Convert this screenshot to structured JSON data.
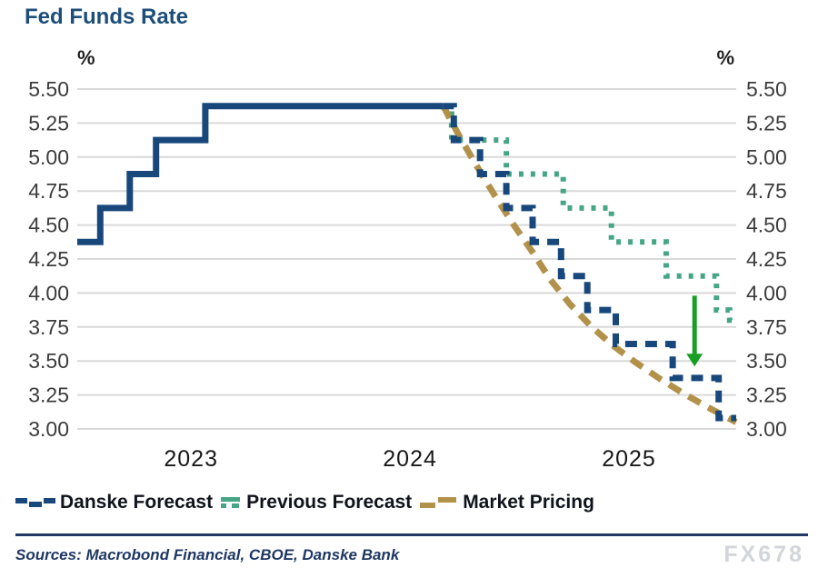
{
  "title": "Fed Funds Rate",
  "axis": {
    "unit_label": "%",
    "y_ticks": [
      {
        "label": "5.50",
        "value": 5.5
      },
      {
        "label": "5.25",
        "value": 5.25
      },
      {
        "label": "5.00",
        "value": 5.0
      },
      {
        "label": "4.75",
        "value": 4.75
      },
      {
        "label": "4.50",
        "value": 4.5
      },
      {
        "label": "4.25",
        "value": 4.25
      },
      {
        "label": "4.00",
        "value": 4.0
      },
      {
        "label": "3.75",
        "value": 3.75
      },
      {
        "label": "3.50",
        "value": 3.5
      },
      {
        "label": "3.25",
        "value": 3.25
      },
      {
        "label": "3.00",
        "value": 3.0
      }
    ],
    "x_ticks": [
      {
        "label": "2023",
        "t": 2023.5
      },
      {
        "label": "2024",
        "t": 2024.5
      },
      {
        "label": "2025",
        "t": 2025.5
      }
    ]
  },
  "chart_data": {
    "type": "line",
    "title": "Fed Funds Rate",
    "ylabel": "%",
    "ylim": [
      3.0,
      5.5
    ],
    "xlim": [
      2022.98,
      2025.99
    ],
    "y_tick_step": 0.25,
    "grid": true,
    "legend_position": "bottom",
    "series": [
      {
        "id": "history",
        "mode": "step",
        "style": "solid",
        "color": "#17477b",
        "width": 7,
        "points": [
          [
            2022.98,
            4.375
          ],
          [
            2023.085,
            4.625
          ],
          [
            2023.22,
            4.875
          ],
          [
            2023.34,
            5.125
          ],
          [
            2023.565,
            5.375
          ],
          [
            2024.652,
            5.375
          ]
        ]
      },
      {
        "id": "danske",
        "name": "Danske Forecast",
        "mode": "step",
        "style": "dashed",
        "dash": "13 9",
        "color": "#17477b",
        "width": 7,
        "points": [
          [
            2024.652,
            5.375
          ],
          [
            2024.7,
            5.125
          ],
          [
            2024.82,
            4.875
          ],
          [
            2024.94,
            4.625
          ],
          [
            2025.06,
            4.375
          ],
          [
            2025.19,
            4.125
          ],
          [
            2025.31,
            3.875
          ],
          [
            2025.44,
            3.625
          ],
          [
            2025.7,
            3.375
          ],
          [
            2025.91,
            3.08
          ],
          [
            2025.99,
            3.08
          ]
        ]
      },
      {
        "id": "previous",
        "name": "Previous Forecast",
        "mode": "step",
        "style": "dotted",
        "dash": "5 8",
        "color": "#45a585",
        "width": 6,
        "points": [
          [
            2024.66,
            5.375
          ],
          [
            2024.69,
            5.125
          ],
          [
            2024.94,
            4.875
          ],
          [
            2025.2,
            4.625
          ],
          [
            2025.42,
            4.375
          ],
          [
            2025.67,
            4.125
          ],
          [
            2025.9,
            3.875
          ],
          [
            2025.96,
            3.8
          ],
          [
            2025.99,
            3.8
          ]
        ]
      },
      {
        "id": "market",
        "name": "Market Pricing",
        "mode": "line",
        "style": "dashed",
        "dash": "15 10",
        "color": "#b2914a",
        "width": 7,
        "points": [
          [
            2024.652,
            5.375
          ],
          [
            2024.73,
            5.14
          ],
          [
            2024.81,
            4.92
          ],
          [
            2024.89,
            4.71
          ],
          [
            2024.97,
            4.51
          ],
          [
            2025.06,
            4.3
          ],
          [
            2025.14,
            4.1
          ],
          [
            2025.23,
            3.92
          ],
          [
            2025.33,
            3.75
          ],
          [
            2025.43,
            3.61
          ],
          [
            2025.53,
            3.49
          ],
          [
            2025.64,
            3.37
          ],
          [
            2025.75,
            3.26
          ],
          [
            2025.86,
            3.16
          ],
          [
            2025.93,
            3.1
          ],
          [
            2025.99,
            3.05
          ]
        ]
      }
    ],
    "annotations": [
      {
        "type": "arrow",
        "direction": "down",
        "t": 2025.8,
        "from": 3.98,
        "to": 3.46,
        "color": "#189e23"
      }
    ]
  },
  "footer": {
    "sources": "Sources: Macrobond Financial, CBOE, Danske Bank",
    "watermark": "FX678"
  }
}
